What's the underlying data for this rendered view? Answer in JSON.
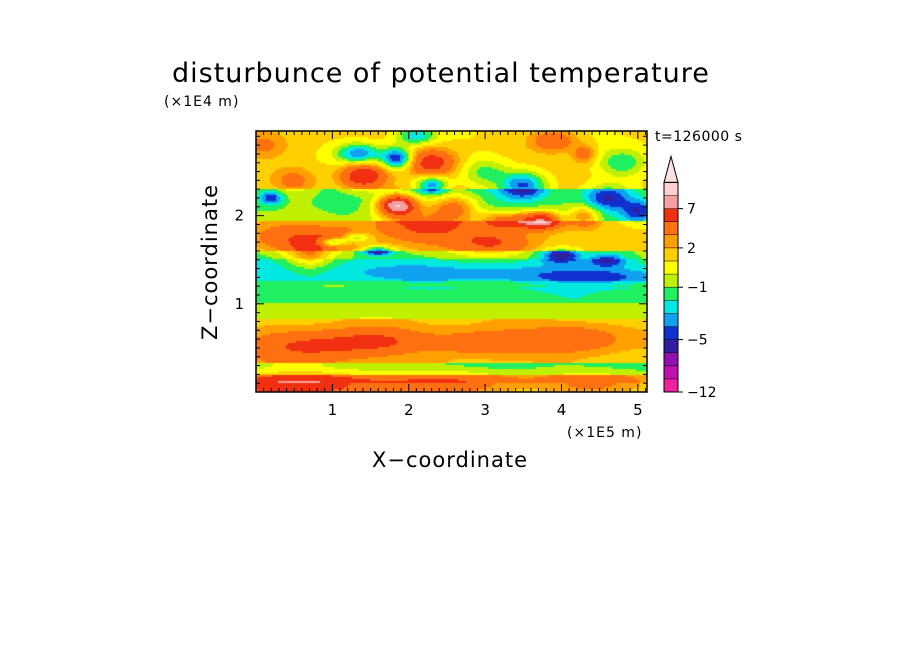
{
  "chart_data": {
    "type": "heatmap",
    "title": "disturbunce of potential temperature",
    "xlabel": "X−coordinate",
    "ylabel": "Z−coordinate",
    "x_unit_label": "(×1E5 m)",
    "y_unit_label": "(×1E4 m)",
    "time_label": "t=126000 s",
    "xlim": [
      0,
      5.12
    ],
    "ylim": [
      0,
      2.96
    ],
    "x_ticks": [
      "1",
      "2",
      "3",
      "4",
      "5"
    ],
    "y_ticks": [
      "1",
      "2"
    ],
    "colorbar": {
      "tick_labels": [
        "7",
        "2",
        "−1",
        "−5",
        "−12"
      ],
      "levels_low_to_high": [
        -12,
        -10,
        -8,
        -6,
        -5,
        -4,
        -3,
        -2,
        -1,
        0,
        1,
        2,
        3,
        5,
        7,
        9,
        11
      ],
      "colors_low_to_high": [
        "#f020a0",
        "#c010b0",
        "#9010b0",
        "#3020a0",
        "#1030d0",
        "#10a0f0",
        "#00e8e0",
        "#20f060",
        "#c0f000",
        "#ffff00",
        "#ffd000",
        "#ffa000",
        "#ff7010",
        "#f03010",
        "#f4a0a0",
        "#ffd0d0"
      ],
      "extend": "max",
      "overflow_color": "#ffe0e0"
    },
    "features": [
      {
        "x": 0.3,
        "z": 0.05,
        "w": 0.9,
        "h": 0.15,
        "v": 4
      },
      {
        "x": 1.0,
        "z": 0.1,
        "w": 1.0,
        "h": 0.15,
        "v": 3
      },
      {
        "x": 2.6,
        "z": 0.1,
        "w": 0.9,
        "h": 0.15,
        "v": 3.5
      },
      {
        "x": 4.5,
        "z": 0.1,
        "w": 0.8,
        "h": 0.15,
        "v": 3
      },
      {
        "x": 0.7,
        "z": 0.52,
        "w": 0.8,
        "h": 0.18,
        "v": 4
      },
      {
        "x": 1.6,
        "z": 0.58,
        "w": 0.6,
        "h": 0.15,
        "v": 3
      },
      {
        "x": 3.0,
        "z": 0.55,
        "w": 0.8,
        "h": 0.15,
        "v": 3
      },
      {
        "x": 4.2,
        "z": 0.6,
        "w": 0.6,
        "h": 0.15,
        "v": 2.8
      },
      {
        "x": 2.6,
        "z": 1.35,
        "w": 2.2,
        "h": 0.12,
        "v": -1.5
      },
      {
        "x": 4.5,
        "z": 1.3,
        "w": 0.8,
        "h": 0.1,
        "v": -2.5
      },
      {
        "x": 0.7,
        "z": 1.6,
        "w": 0.3,
        "h": 0.2,
        "v": 4
      },
      {
        "x": 0.3,
        "z": 1.75,
        "w": 0.4,
        "h": 0.15,
        "v": 2.5
      },
      {
        "x": 1.1,
        "z": 1.75,
        "w": 0.35,
        "h": 0.12,
        "v": 3
      },
      {
        "x": 2.2,
        "z": 1.9,
        "w": 0.6,
        "h": 0.2,
        "v": 4
      },
      {
        "x": 3.1,
        "z": 1.7,
        "w": 0.5,
        "h": 0.15,
        "v": 3.5
      },
      {
        "x": 1.0,
        "z": 1.7,
        "w": 0.18,
        "h": 0.05,
        "v": -5
      },
      {
        "x": 1.6,
        "z": 1.6,
        "w": 0.2,
        "h": 0.05,
        "v": -5
      },
      {
        "x": 1.3,
        "z": 1.75,
        "w": 0.2,
        "h": 0.06,
        "v": -4
      },
      {
        "x": 1.85,
        "z": 2.12,
        "w": 0.25,
        "h": 0.12,
        "v": 9.5
      },
      {
        "x": 1.4,
        "z": 2.45,
        "w": 0.3,
        "h": 0.15,
        "v": 6
      },
      {
        "x": 2.3,
        "z": 2.6,
        "w": 0.3,
        "h": 0.15,
        "v": 5
      },
      {
        "x": 2.6,
        "z": 2.1,
        "w": 0.3,
        "h": 0.15,
        "v": 4
      },
      {
        "x": 1.35,
        "z": 2.7,
        "w": 0.3,
        "h": 0.12,
        "v": -5.5
      },
      {
        "x": 1.85,
        "z": 2.65,
        "w": 0.2,
        "h": 0.12,
        "v": -6.5
      },
      {
        "x": 2.3,
        "z": 2.35,
        "w": 0.2,
        "h": 0.1,
        "v": -5
      },
      {
        "x": 2.1,
        "z": 2.9,
        "w": 0.25,
        "h": 0.1,
        "v": -4
      },
      {
        "x": 3.5,
        "z": 2.35,
        "w": 0.3,
        "h": 0.15,
        "v": -5.5
      },
      {
        "x": 3.3,
        "z": 1.95,
        "w": 0.35,
        "h": 0.1,
        "v": 5
      },
      {
        "x": 3.75,
        "z": 1.95,
        "w": 0.25,
        "h": 0.1,
        "v": 7.5
      },
      {
        "x": 4.0,
        "z": 1.55,
        "w": 0.25,
        "h": 0.08,
        "v": -5
      },
      {
        "x": 4.3,
        "z": 2.0,
        "w": 0.2,
        "h": 0.12,
        "v": 4
      },
      {
        "x": 4.6,
        "z": 2.2,
        "w": 0.3,
        "h": 0.15,
        "v": -4
      },
      {
        "x": 4.8,
        "z": 2.6,
        "w": 0.3,
        "h": 0.15,
        "v": -3
      },
      {
        "x": 5.0,
        "z": 2.05,
        "w": 0.2,
        "h": 0.12,
        "v": -3.5
      },
      {
        "x": 4.6,
        "z": 1.5,
        "w": 0.25,
        "h": 0.08,
        "v": -4
      },
      {
        "x": 0.2,
        "z": 2.2,
        "w": 0.15,
        "h": 0.08,
        "v": -4
      },
      {
        "x": 0.5,
        "z": 2.4,
        "w": 0.3,
        "h": 0.15,
        "v": 2.5
      },
      {
        "x": 0.1,
        "z": 2.8,
        "w": 0.3,
        "h": 0.15,
        "v": 2
      },
      {
        "x": 3.9,
        "z": 2.85,
        "w": 0.3,
        "h": 0.12,
        "v": 3.5
      },
      {
        "x": 4.3,
        "z": 2.7,
        "w": 0.15,
        "h": 0.1,
        "v": 3
      },
      {
        "x": 3.0,
        "z": 2.5,
        "w": 0.3,
        "h": 0.15,
        "v": -2.5
      }
    ]
  }
}
